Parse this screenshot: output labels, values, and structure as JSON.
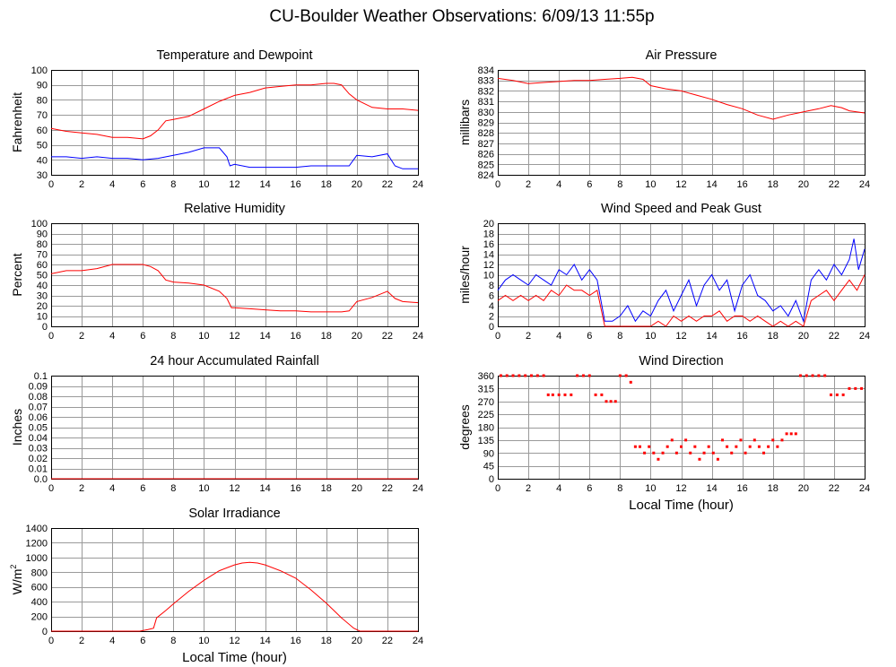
{
  "page_title": "CU-Boulder Weather Observations: 6/09/13 11:55p",
  "chart_data": [
    {
      "id": "temperature",
      "type": "line",
      "title": "Temperature and Dewpoint",
      "ylabel": "Fahrenheit",
      "xlabel": "",
      "xlim": [
        0,
        24
      ],
      "ylim": [
        30,
        100
      ],
      "xticks": [
        0,
        2,
        4,
        6,
        8,
        10,
        12,
        14,
        16,
        18,
        20,
        22,
        24
      ],
      "yticks": [
        30,
        40,
        50,
        60,
        70,
        80,
        90,
        100
      ],
      "grid": true,
      "series": [
        {
          "color": "#ff0000",
          "x": [
            0,
            1,
            2,
            3,
            4,
            5,
            6,
            6.5,
            7,
            7.5,
            8,
            9,
            10,
            11,
            12,
            13,
            14,
            15,
            16,
            17,
            18,
            18.5,
            19,
            19.5,
            20,
            21,
            22,
            23,
            24
          ],
          "y": [
            61,
            59,
            58,
            57,
            55,
            55,
            54,
            56,
            60,
            66,
            67,
            69,
            74,
            79,
            83,
            85,
            88,
            89,
            90,
            90,
            91,
            91,
            90,
            84,
            80,
            75,
            74,
            74,
            73
          ]
        },
        {
          "color": "#0000ff",
          "x": [
            0,
            1,
            2,
            3,
            4,
            5,
            6,
            7,
            8,
            9,
            10,
            11,
            11.5,
            11.7,
            12,
            13,
            14,
            15,
            16,
            17,
            18,
            19,
            19.5,
            20,
            21,
            22,
            22.5,
            23,
            24
          ],
          "y": [
            42,
            42,
            41,
            42,
            41,
            41,
            40,
            41,
            43,
            45,
            48,
            48,
            42,
            36,
            37,
            35,
            35,
            35,
            35,
            36,
            36,
            36,
            36,
            43,
            42,
            44,
            36,
            34,
            34
          ]
        }
      ]
    },
    {
      "id": "pressure",
      "type": "line",
      "title": "Air Pressure",
      "ylabel": "millibars",
      "xlabel": "",
      "xlim": [
        0,
        24
      ],
      "ylim": [
        824,
        834
      ],
      "xticks": [
        0,
        2,
        4,
        6,
        8,
        10,
        12,
        14,
        16,
        18,
        20,
        22,
        24
      ],
      "yticks": [
        824,
        825,
        826,
        827,
        828,
        829,
        830,
        831,
        832,
        833,
        834
      ],
      "grid": true,
      "series": [
        {
          "color": "#ff0000",
          "x": [
            0,
            1,
            2,
            3,
            4,
            5,
            6,
            7,
            8,
            8.8,
            9.5,
            10,
            11,
            12,
            13,
            14,
            15,
            16,
            17,
            18,
            19,
            20,
            21,
            21.8,
            22.5,
            23,
            24
          ],
          "y": [
            833.2,
            833,
            832.7,
            832.8,
            832.9,
            833,
            833,
            833.1,
            833.2,
            833.3,
            833.1,
            832.5,
            832.2,
            832,
            831.6,
            831.2,
            830.7,
            830.3,
            829.7,
            829.3,
            829.7,
            830,
            830.3,
            830.6,
            830.4,
            830.1,
            829.9
          ]
        }
      ]
    },
    {
      "id": "humidity",
      "type": "line",
      "title": "Relative Humidity",
      "ylabel": "Percent",
      "xlabel": "",
      "xlim": [
        0,
        24
      ],
      "ylim": [
        0,
        100
      ],
      "xticks": [
        0,
        2,
        4,
        6,
        8,
        10,
        12,
        14,
        16,
        18,
        20,
        22,
        24
      ],
      "yticks": [
        0,
        10,
        20,
        30,
        40,
        50,
        60,
        70,
        80,
        90,
        100
      ],
      "grid": true,
      "series": [
        {
          "color": "#ff0000",
          "x": [
            0,
            1,
            2,
            3,
            4,
            5,
            6,
            6.5,
            7,
            7.5,
            8,
            9,
            10,
            11,
            11.5,
            11.8,
            12,
            13,
            14,
            15,
            16,
            17,
            18,
            19,
            19.5,
            20,
            21,
            22,
            22.5,
            23,
            24
          ],
          "y": [
            51,
            54,
            54,
            56,
            60,
            60,
            60,
            58,
            54,
            45,
            43,
            42,
            40,
            34,
            27,
            18,
            18,
            17,
            16,
            15,
            15,
            14,
            14,
            14,
            15,
            24,
            28,
            34,
            27,
            24,
            23
          ]
        }
      ]
    },
    {
      "id": "wind_speed",
      "type": "line",
      "title": "Wind Speed and Peak Gust",
      "ylabel": "miles/hour",
      "xlabel": "",
      "xlim": [
        0,
        24
      ],
      "ylim": [
        0,
        20
      ],
      "xticks": [
        0,
        2,
        4,
        6,
        8,
        10,
        12,
        14,
        16,
        18,
        20,
        22,
        24
      ],
      "yticks": [
        0,
        2,
        4,
        6,
        8,
        10,
        12,
        14,
        16,
        18,
        20
      ],
      "grid": true,
      "series": [
        {
          "color": "#0000ff",
          "x": [
            0,
            0.5,
            1,
            1.5,
            2,
            2.5,
            3,
            3.5,
            4,
            4.5,
            5,
            5.5,
            6,
            6.5,
            7,
            7.5,
            8,
            8.5,
            9,
            9.5,
            10,
            10.5,
            11,
            11.5,
            12,
            12.5,
            13,
            13.5,
            14,
            14.5,
            15,
            15.5,
            16,
            16.5,
            17,
            17.5,
            18,
            18.5,
            19,
            19.5,
            20,
            20.5,
            21,
            21.5,
            22,
            22.5,
            23,
            23.3,
            23.6,
            24
          ],
          "y": [
            7,
            9,
            10,
            9,
            8,
            10,
            9,
            8,
            11,
            10,
            12,
            9,
            11,
            9,
            1,
            1,
            2,
            4,
            1,
            3,
            2,
            5,
            7,
            3,
            6,
            9,
            4,
            8,
            10,
            7,
            9,
            3,
            8,
            10,
            6,
            5,
            3,
            4,
            2,
            5,
            1,
            9,
            11,
            9,
            12,
            10,
            13,
            17,
            11,
            15
          ]
        },
        {
          "color": "#ff0000",
          "x": [
            0,
            0.5,
            1,
            1.5,
            2,
            2.5,
            3,
            3.5,
            4,
            4.5,
            5,
            5.5,
            6,
            6.5,
            7,
            7.5,
            8,
            9,
            10,
            10.5,
            11,
            11.5,
            12,
            12.5,
            13,
            13.5,
            14,
            14.5,
            15,
            15.5,
            16,
            16.5,
            17,
            17.5,
            18,
            18.5,
            19,
            19.5,
            20,
            20.5,
            21,
            21.5,
            22,
            22.5,
            23,
            23.5,
            24
          ],
          "y": [
            5,
            6,
            5,
            6,
            5,
            6,
            5,
            7,
            6,
            8,
            7,
            7,
            6,
            7,
            0,
            0,
            0,
            0,
            0,
            1,
            0,
            2,
            1,
            2,
            1,
            2,
            2,
            3,
            1,
            2,
            2,
            1,
            2,
            1,
            0,
            1,
            0,
            1,
            0,
            5,
            6,
            7,
            5,
            7,
            9,
            7,
            10
          ]
        }
      ]
    },
    {
      "id": "rainfall",
      "type": "line",
      "title": "24 hour Accumulated Rainfall",
      "ylabel": "Inches",
      "xlabel": "",
      "xlim": [
        0,
        24
      ],
      "ylim": [
        0,
        0.1
      ],
      "xticks": [
        0,
        2,
        4,
        6,
        8,
        10,
        12,
        14,
        16,
        18,
        20,
        22,
        24
      ],
      "yticks": [
        0.0,
        0.01,
        0.02,
        0.03,
        0.04,
        0.05,
        0.06,
        0.07,
        0.08,
        0.09,
        0.1
      ],
      "ytick_labels": [
        "0.0",
        "0.01",
        "0.02",
        "0.03",
        "0.04",
        "0.05",
        "0.06",
        "0.07",
        "0.08",
        "0.09",
        "0.1"
      ],
      "grid": true,
      "series": [
        {
          "color": "#ff0000",
          "x": [
            0,
            24
          ],
          "y": [
            0,
            0
          ]
        }
      ]
    },
    {
      "id": "wind_direction",
      "type": "scatter",
      "title": "Wind Direction",
      "ylabel": "degrees",
      "xlabel": "Local Time (hour)",
      "xlim": [
        0,
        24
      ],
      "ylim": [
        0,
        360
      ],
      "xticks": [
        0,
        2,
        4,
        6,
        8,
        10,
        12,
        14,
        16,
        18,
        20,
        22,
        24
      ],
      "yticks": [
        0,
        45,
        90,
        135,
        180,
        225,
        270,
        315,
        360
      ],
      "grid": true,
      "series": [
        {
          "color": "#ff0000",
          "x": [
            0.2,
            0.6,
            1.0,
            1.4,
            1.8,
            2.2,
            2.6,
            3.0,
            3.3,
            3.6,
            4.0,
            4.4,
            4.8,
            5.2,
            5.6,
            6.0,
            6.4,
            6.8,
            7.1,
            7.4,
            7.7,
            8.0,
            8.4,
            8.7,
            9.0,
            9.3,
            9.6,
            9.9,
            10.2,
            10.5,
            10.8,
            11.1,
            11.4,
            11.7,
            12.0,
            12.3,
            12.6,
            12.9,
            13.2,
            13.5,
            13.8,
            14.1,
            14.4,
            14.7,
            15.0,
            15.3,
            15.6,
            15.9,
            16.2,
            16.5,
            16.8,
            17.1,
            17.4,
            17.7,
            18.0,
            18.3,
            18.6,
            18.9,
            19.2,
            19.5,
            19.8,
            20.2,
            20.6,
            21.0,
            21.4,
            21.8,
            22.2,
            22.6,
            23.0,
            23.4,
            23.8
          ],
          "y": [
            360,
            360,
            360,
            360,
            360,
            360,
            360,
            360,
            293,
            293,
            293,
            293,
            293,
            360,
            360,
            360,
            293,
            293,
            270,
            270,
            270,
            360,
            360,
            337,
            112,
            112,
            90,
            112,
            90,
            68,
            90,
            112,
            135,
            90,
            112,
            135,
            90,
            112,
            68,
            90,
            112,
            90,
            68,
            135,
            112,
            90,
            112,
            135,
            90,
            112,
            135,
            112,
            90,
            112,
            135,
            112,
            135,
            157,
            157,
            157,
            360,
            360,
            360,
            360,
            360,
            293,
            293,
            293,
            315,
            315,
            315
          ]
        }
      ]
    },
    {
      "id": "solar",
      "type": "line",
      "title": "Solar Irradiance",
      "ylabel": "W/m",
      "ylabel_sup": "2",
      "xlabel": "Local Time (hour)",
      "xlim": [
        0,
        24
      ],
      "ylim": [
        0,
        1400
      ],
      "xticks": [
        0,
        2,
        4,
        6,
        8,
        10,
        12,
        14,
        16,
        18,
        20,
        22,
        24
      ],
      "yticks": [
        0,
        200,
        400,
        600,
        800,
        1000,
        1200,
        1400
      ],
      "grid": true,
      "series": [
        {
          "color": "#ff0000",
          "x": [
            0,
            5.8,
            6.3,
            6.7,
            6.9,
            7.5,
            8,
            9,
            10,
            11,
            12,
            12.5,
            13,
            13.5,
            14,
            15,
            16,
            17,
            18,
            19,
            19.8,
            20.2,
            24
          ],
          "y": [
            0,
            0,
            20,
            40,
            180,
            280,
            370,
            540,
            690,
            820,
            900,
            925,
            935,
            925,
            900,
            820,
            720,
            560,
            380,
            180,
            40,
            0,
            0
          ]
        }
      ]
    }
  ]
}
